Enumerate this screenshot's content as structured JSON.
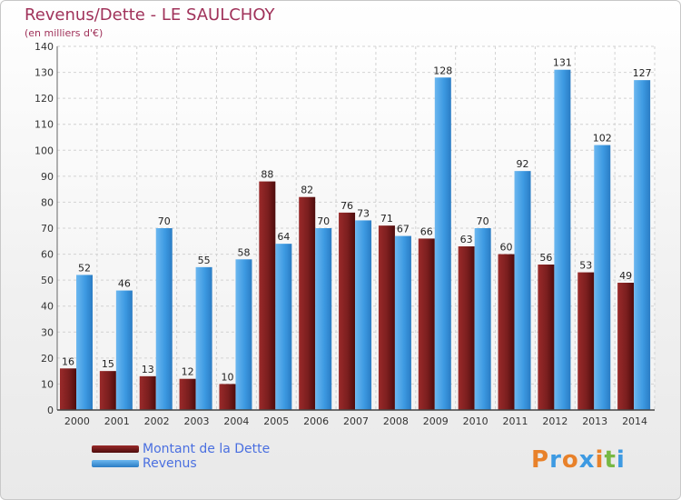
{
  "chart_data": {
    "type": "bar",
    "title": "Revenus/Dette - LE SAULCHOY",
    "subtitle": "(en milliers d'€)",
    "categories": [
      "2000",
      "2001",
      "2002",
      "2003",
      "2004",
      "2005",
      "2006",
      "2007",
      "2008",
      "2009",
      "2010",
      "2011",
      "2012",
      "2013",
      "2014"
    ],
    "series": [
      {
        "name": "Montant de la Dette",
        "color": "#7a1e1e",
        "values": [
          16,
          15,
          13,
          12,
          10,
          88,
          82,
          76,
          71,
          66,
          63,
          60,
          56,
          53,
          49
        ]
      },
      {
        "name": "Revenus",
        "color": "#3d9ae2",
        "values": [
          52,
          46,
          70,
          55,
          58,
          64,
          70,
          73,
          67,
          128,
          70,
          92,
          131,
          102,
          127
        ]
      }
    ],
    "ylim": [
      0,
      140
    ],
    "yticks": [
      0,
      10,
      20,
      30,
      40,
      50,
      60,
      70,
      80,
      90,
      100,
      110,
      120,
      130,
      140
    ],
    "grid": true,
    "legend": "bottom-left"
  },
  "logo": {
    "letters": [
      "P",
      "r",
      "o",
      "x",
      "i",
      "t",
      "i"
    ],
    "colors": [
      "#e8812a",
      "#3d9ae2",
      "#e8812a",
      "#3d9ae2",
      "#e8812a",
      "#77b844",
      "#3d9ae2"
    ]
  }
}
